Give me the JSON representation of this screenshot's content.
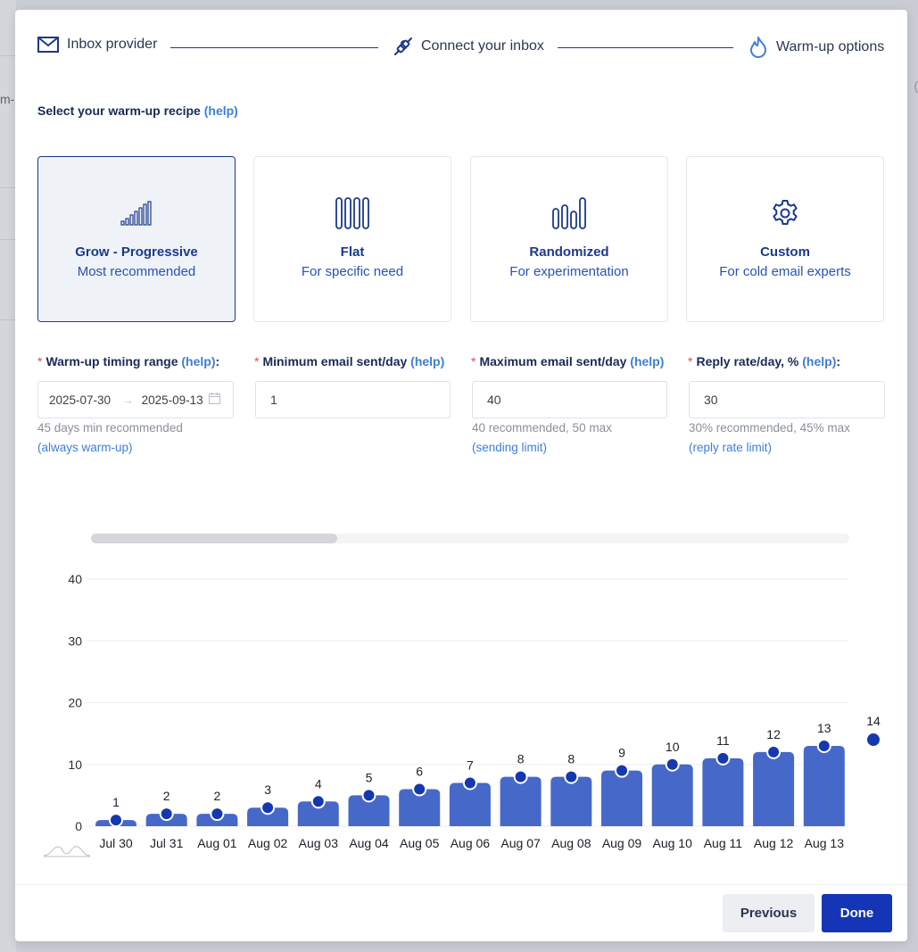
{
  "stepper": {
    "steps": [
      {
        "label": "Inbox provider",
        "icon": "envelope-icon"
      },
      {
        "label": "Connect your inbox",
        "icon": "plug-icon"
      },
      {
        "label": "Warm-up options",
        "icon": "flame-icon"
      }
    ]
  },
  "recipe": {
    "title": "Select your warm-up recipe",
    "help": "(help)",
    "cards": [
      {
        "title": "Grow - Progressive",
        "subtitle": "Most recommended",
        "icon": "progressive-bars-icon",
        "selected": true
      },
      {
        "title": "Flat",
        "subtitle": "For specific need",
        "icon": "flat-bars-icon",
        "selected": false
      },
      {
        "title": "Randomized",
        "subtitle": "For experimentation",
        "icon": "random-bars-icon",
        "selected": false
      },
      {
        "title": "Custom",
        "subtitle": "For cold email experts",
        "icon": "gear-icon",
        "selected": false
      }
    ]
  },
  "fields": {
    "timing": {
      "label": "Warm-up timing range",
      "help": "(help)",
      "suffix": ":",
      "start": "2025-07-30",
      "arrow": "→",
      "end": "2025-09-13",
      "hint": "45 days min recommended",
      "link": "(always warm-up)"
    },
    "min_email": {
      "label": "Minimum email sent/day",
      "help": "(help)",
      "value": "1"
    },
    "max_email": {
      "label": "Maximum email sent/day",
      "help": "(help)",
      "value": "40",
      "hint": "40 recommended, 50 max",
      "link": "(sending limit)"
    },
    "reply_rate": {
      "label": "Reply rate/day, %",
      "help": "(help)",
      "suffix": ":",
      "value": "30",
      "hint": "30% recommended, 45% max",
      "link": "(reply rate limit)"
    },
    "required_mark": "*"
  },
  "chart_data": {
    "type": "bar",
    "categories": [
      "Jul 30",
      "Jul 31",
      "Aug 01",
      "Aug 02",
      "Aug 03",
      "Aug 04",
      "Aug 05",
      "Aug 06",
      "Aug 07",
      "Aug 08",
      "Aug 09",
      "Aug 10",
      "Aug 11",
      "Aug 12",
      "Aug 13"
    ],
    "values": [
      1,
      2,
      2,
      3,
      4,
      5,
      6,
      7,
      8,
      8,
      9,
      10,
      11,
      12,
      13
    ],
    "extra_point": {
      "label": "14",
      "value": 14
    },
    "yticks": [
      0,
      10,
      20,
      30,
      40
    ],
    "ylim": [
      0,
      40
    ],
    "grid": true,
    "bar_color": "#4668c9",
    "point_color": "#1438b0"
  },
  "buttons": {
    "previous": "Previous",
    "done": "Done"
  },
  "background": {
    "left_fragment": "m-"
  },
  "colors": {
    "primary": "#1435b5",
    "link": "#3d7fd6",
    "selected_card_bg": "#eff2f7"
  }
}
